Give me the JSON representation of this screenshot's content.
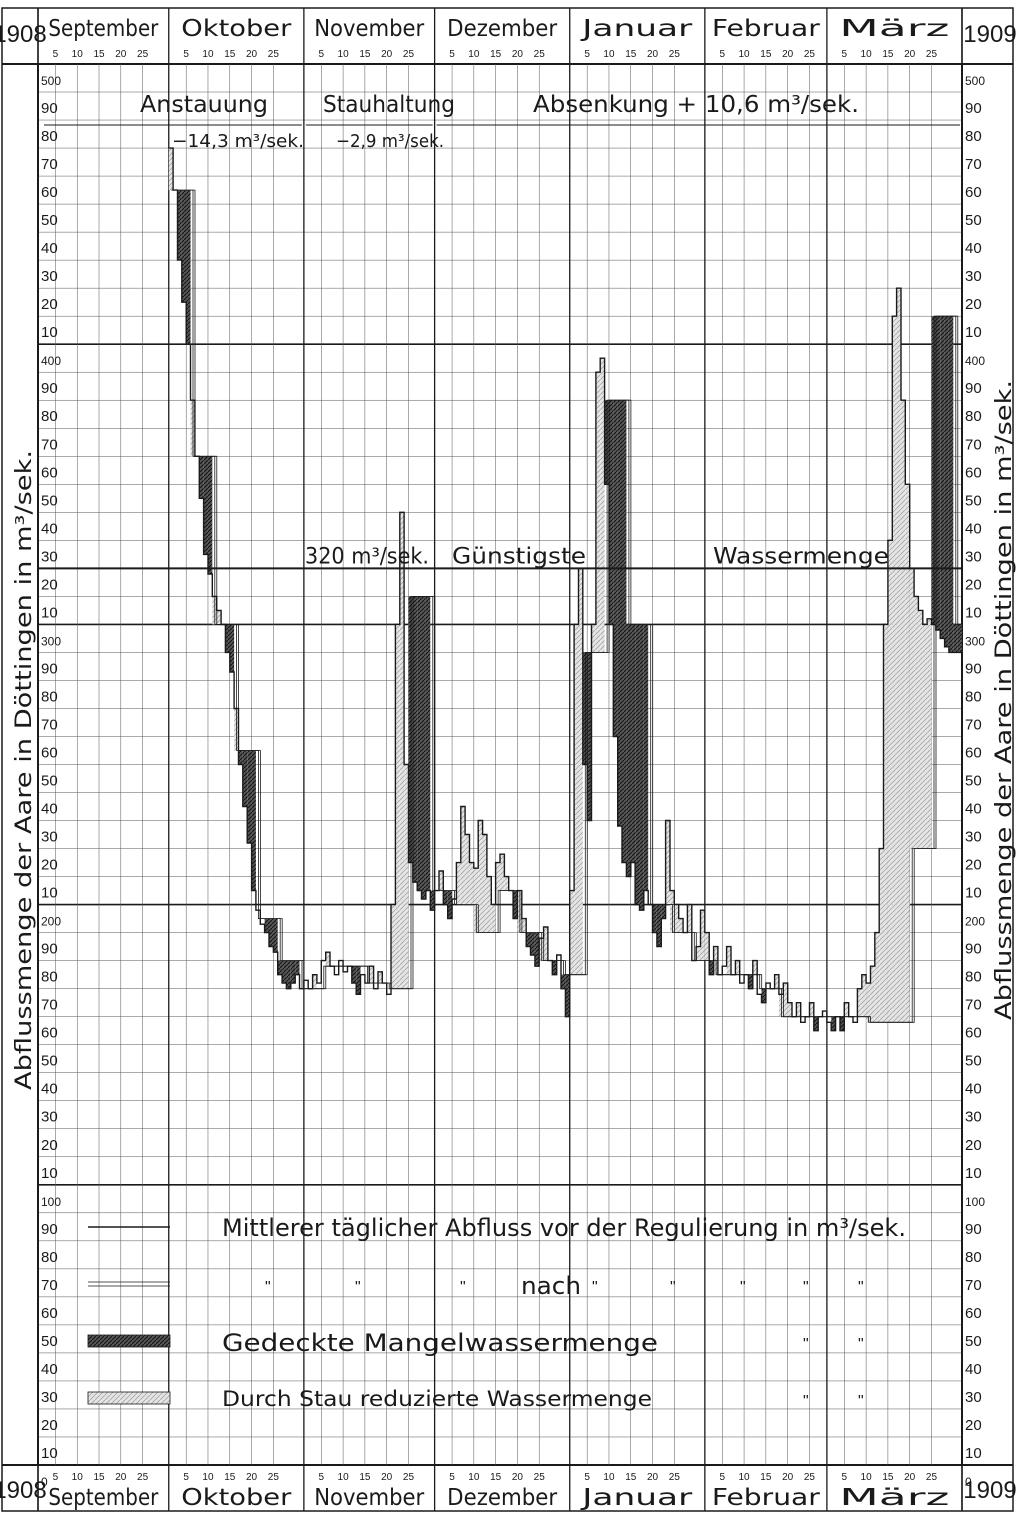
{
  "header": {
    "year_left": "1908",
    "year_right": "1909",
    "months": [
      "September",
      "Oktober",
      "November",
      "Dezember",
      "Januar",
      "Februar",
      "März"
    ],
    "day_ticks": [
      "5",
      "10",
      "15",
      "20",
      "25"
    ]
  },
  "chart_data": {
    "type": "line",
    "ylabel": "Abflussmenge der Aare in Döttingen in m³/sek.",
    "ylim": [
      0,
      500
    ],
    "y_major_labels": [
      "500",
      "400",
      "300",
      "200",
      "100",
      "0"
    ],
    "y_minor_labels": [
      "90",
      "80",
      "70",
      "60",
      "50",
      "40",
      "30",
      "20",
      "10"
    ],
    "x_period": [
      "1908-09-01",
      "1909-03-31"
    ],
    "reference_line": {
      "value": 320,
      "label_left": "320 m³/sek.",
      "label_mid": "Günstigste",
      "label_right": "Wassermenge"
    },
    "phases": [
      {
        "name": "Anstauung",
        "rate": "−14,3 m³/sek.",
        "from": "1908-09-01",
        "to": "1908-11-01"
      },
      {
        "name": "Stauhaltung",
        "rate": "−2,9 m³/sek.",
        "from": "1908-11-01",
        "to": "1908-12-01"
      },
      {
        "name": "Absenkung + 10,6 m³/sek.",
        "rate": "",
        "from": "1908-12-01",
        "to": "1909-03-31"
      }
    ],
    "series": [
      {
        "name": "Mittlerer täglicher Abfluss vor der Regulierung in m³/sek.",
        "x": [
          "1908-10-01",
          "1908-10-02",
          "1908-10-03",
          "1908-10-04",
          "1908-10-05",
          "1908-10-06",
          "1908-10-07",
          "1908-10-08",
          "1908-10-09",
          "1908-10-10",
          "1908-10-11",
          "1908-10-12",
          "1908-10-13",
          "1908-10-14",
          "1908-10-15",
          "1908-10-16",
          "1908-10-17",
          "1908-10-18",
          "1908-10-19",
          "1908-10-20",
          "1908-10-21",
          "1908-10-22",
          "1908-10-23",
          "1908-10-24",
          "1908-10-25",
          "1908-10-26",
          "1908-10-27",
          "1908-10-28",
          "1908-10-29",
          "1908-10-30",
          "1908-10-31",
          "1908-11-01",
          "1908-11-02",
          "1908-11-03",
          "1908-11-04",
          "1908-11-05",
          "1908-11-06",
          "1908-11-07",
          "1908-11-08",
          "1908-11-09",
          "1908-11-10",
          "1908-11-11",
          "1908-11-12",
          "1908-11-13",
          "1908-11-14",
          "1908-11-15",
          "1908-11-16",
          "1908-11-17",
          "1908-11-18",
          "1908-11-19",
          "1908-11-20",
          "1908-11-21",
          "1908-11-22",
          "1908-11-23",
          "1908-11-24",
          "1908-11-25",
          "1908-11-26",
          "1908-11-27",
          "1908-11-28",
          "1908-11-29",
          "1908-11-30",
          "1908-12-01",
          "1908-12-02",
          "1908-12-03",
          "1908-12-04",
          "1908-12-05",
          "1908-12-06",
          "1908-12-07",
          "1908-12-08",
          "1908-12-09",
          "1908-12-10",
          "1908-12-11",
          "1908-12-12",
          "1908-12-13",
          "1908-12-14",
          "1908-12-15",
          "1908-12-16",
          "1908-12-17",
          "1908-12-18",
          "1908-12-19",
          "1908-12-20",
          "1908-12-21",
          "1908-12-22",
          "1908-12-23",
          "1908-12-24",
          "1908-12-25",
          "1908-12-26",
          "1908-12-27",
          "1908-12-28",
          "1908-12-29",
          "1908-12-30",
          "1908-12-31",
          "1909-01-01",
          "1909-01-02",
          "1909-01-03",
          "1909-01-04",
          "1909-01-05",
          "1909-01-06",
          "1909-01-07",
          "1909-01-08",
          "1909-01-09",
          "1909-01-10",
          "1909-01-11",
          "1909-01-12",
          "1909-01-13",
          "1909-01-14",
          "1909-01-15",
          "1909-01-16",
          "1909-01-17",
          "1909-01-18",
          "1909-01-19",
          "1909-01-20",
          "1909-01-21",
          "1909-01-22",
          "1909-01-23",
          "1909-01-24",
          "1909-01-25",
          "1909-01-26",
          "1909-01-27",
          "1909-01-28",
          "1909-01-29",
          "1909-01-30",
          "1909-01-31",
          "1909-02-01",
          "1909-02-02",
          "1909-02-03",
          "1909-02-04",
          "1909-02-05",
          "1909-02-06",
          "1909-02-07",
          "1909-02-08",
          "1909-02-09",
          "1909-02-10",
          "1909-02-11",
          "1909-02-12",
          "1909-02-13",
          "1909-02-14",
          "1909-02-15",
          "1909-02-16",
          "1909-02-17",
          "1909-02-18",
          "1909-02-19",
          "1909-02-20",
          "1909-02-21",
          "1909-02-22",
          "1909-02-23",
          "1909-02-24",
          "1909-02-25",
          "1909-02-26",
          "1909-02-27",
          "1909-02-28",
          "1909-03-01",
          "1909-03-02",
          "1909-03-03",
          "1909-03-04",
          "1909-03-05",
          "1909-03-06",
          "1909-03-07",
          "1909-03-08",
          "1909-03-09",
          "1909-03-10",
          "1909-03-11",
          "1909-03-12",
          "1909-03-13",
          "1909-03-14",
          "1909-03-15",
          "1909-03-16",
          "1909-03-17",
          "1909-03-18",
          "1909-03-19",
          "1909-03-20",
          "1909-03-21",
          "1909-03-22",
          "1909-03-23",
          "1909-03-24",
          "1909-03-25",
          "1909-03-26",
          "1909-03-27",
          "1909-03-28",
          "1909-03-29",
          "1909-03-30",
          "1909-03-31"
        ],
        "y": [
          470,
          455,
          430,
          415,
          400,
          380,
          360,
          345,
          325,
          318,
          310,
          305,
          300,
          290,
          283,
          270,
          250,
          235,
          222,
          205,
          198,
          193,
          190,
          185,
          183,
          175,
          172,
          170,
          172,
          175,
          170,
          173,
          170,
          175,
          172,
          180,
          183,
          178,
          175,
          180,
          176,
          178,
          172,
          168,
          175,
          172,
          178,
          170,
          176,
          172,
          168,
          200,
          300,
          340,
          250,
          215,
          208,
          205,
          202,
          205,
          198,
          205,
          212,
          200,
          195,
          202,
          215,
          235,
          225,
          215,
          213,
          230,
          225,
          210,
          200,
          215,
          218,
          210,
          205,
          195,
          205,
          195,
          185,
          182,
          178,
          188,
          192,
          180,
          175,
          182,
          170,
          160,
          205,
          300,
          320,
          250,
          230,
          300,
          390,
          395,
          350,
          300,
          260,
          228,
          215,
          210,
          215,
          200,
          198,
          205,
          200,
          190,
          185,
          195,
          230,
          205,
          200,
          195,
          190,
          200,
          180,
          185,
          198,
          190,
          175,
          185,
          175,
          178,
          185,
          175,
          180,
          172,
          175,
          170,
          180,
          168,
          165,
          172,
          170,
          175,
          168,
          172,
          165,
          160,
          165,
          158,
          160,
          165,
          155,
          160,
          162,
          158,
          155,
          160,
          155,
          165,
          160,
          158,
          170,
          175,
          172,
          178,
          190,
          220,
          300,
          330,
          410,
          420,
          380,
          350,
          320,
          310,
          305,
          300,
          302,
          300,
          298,
          295,
          292,
          290,
          290,
          290
        ]
      },
      {
        "name": "nach",
        "x": [
          "1908-10-01",
          "1908-10-06",
          "1908-10-11",
          "1908-10-16",
          "1908-10-21",
          "1908-10-26",
          "1908-10-31",
          "1908-11-05",
          "1908-11-10",
          "1908-11-15",
          "1908-11-20",
          "1908-11-25",
          "1908-11-30",
          "1908-12-05",
          "1908-12-10",
          "1908-12-15",
          "1908-12-20",
          "1908-12-25",
          "1908-12-30",
          "1909-01-04",
          "1909-01-09",
          "1909-01-14",
          "1909-01-19",
          "1909-01-24",
          "1909-01-29",
          "1909-02-03",
          "1909-02-08",
          "1909-02-13",
          "1909-02-18",
          "1909-02-23",
          "1909-02-28",
          "1909-03-05",
          "1909-03-10",
          "1909-03-15",
          "1909-03-20",
          "1909-03-25",
          "1909-03-30"
        ],
        "y": [
          455,
          360,
          300,
          255,
          195,
          180,
          170,
          178,
          178,
          172,
          170,
          310,
          205,
          200,
          190,
          205,
          190,
          180,
          175,
          290,
          380,
          300,
          200,
          190,
          180,
          175,
          175,
          170,
          160,
          160,
          160,
          160,
          158,
          158,
          220,
          410,
          300
        ]
      }
    ],
    "shaded_areas": [
      {
        "name": "Gedeckte Mangelwassermenge",
        "hatch": "dense"
      },
      {
        "name": "Durch Stau reduzierte Wassermenge",
        "hatch": "light"
      }
    ]
  },
  "legend": {
    "items": [
      {
        "text": "Mittlerer täglicher Abfluss vor der Regulierung in m³/sek."
      },
      {
        "text": "nach",
        "ditto": "\""
      },
      {
        "text": "Gedeckte Mangelwassermenge",
        "ditto": "\""
      },
      {
        "text": "Durch Stau reduzierte Wassermenge",
        "ditto": "\""
      }
    ]
  },
  "colors": {
    "ink": "#1a1a1a",
    "grid": "#555555",
    "paper": "#ffffff"
  }
}
